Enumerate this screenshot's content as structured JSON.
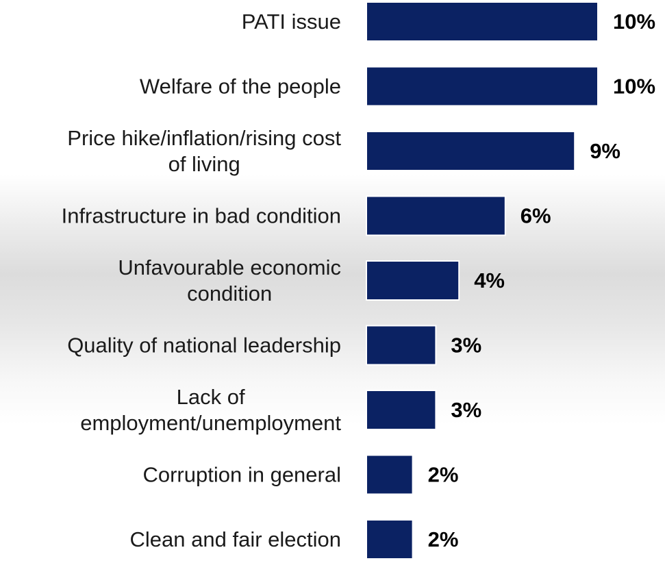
{
  "chart_data": {
    "type": "bar",
    "orientation": "horizontal",
    "categories": [
      "PATI issue",
      "Welfare of the people",
      "Price hike/inflation/rising cost of living",
      "Infrastructure in bad condition",
      "Unfavourable economic condition",
      "Quality of national leadership",
      "Lack of employment/unemployment",
      "Corruption in general",
      "Clean and fair election"
    ],
    "category_lines": [
      [
        "PATI issue"
      ],
      [
        "Welfare of the people"
      ],
      [
        "Price hike/inflation/rising cost",
        "of living"
      ],
      [
        "Infrastructure in bad condition"
      ],
      [
        "Unfavourable economic",
        "condition"
      ],
      [
        "Quality of national leadership"
      ],
      [
        "Lack of",
        "employment/unemployment"
      ],
      [
        "Corruption in general"
      ],
      [
        "Clean and fair election"
      ]
    ],
    "values": [
      10,
      10,
      9,
      6,
      4,
      3,
      3,
      2,
      2
    ],
    "value_labels": [
      "10%",
      "10%",
      "9%",
      "6%",
      "4%",
      "3%",
      "3%",
      "2%",
      "2%"
    ],
    "xlim": [
      0,
      10
    ],
    "grid": false,
    "legend": "none",
    "bar_color": "#0b2263"
  }
}
